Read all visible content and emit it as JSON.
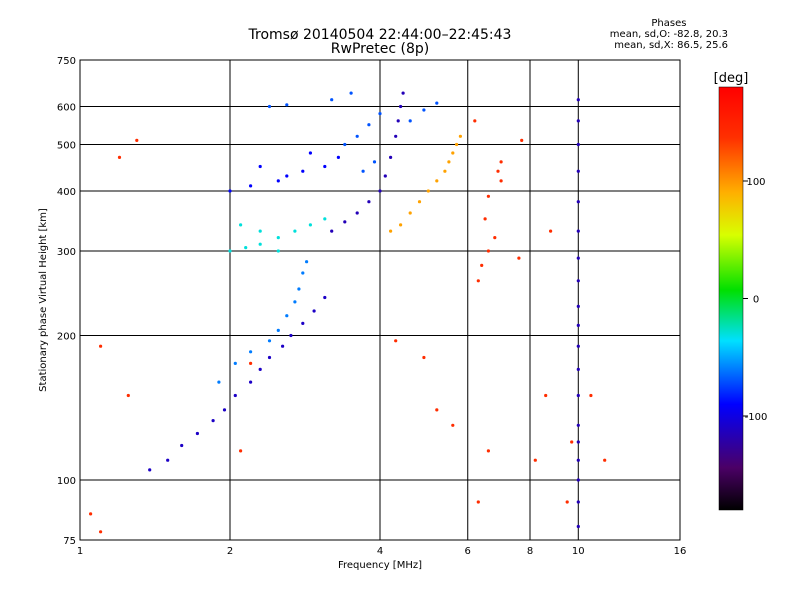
{
  "header": {
    "title": "Tromsø 20140504 22:44:00–22:45:43",
    "subtitle": "RwPretec (8p)"
  },
  "phases": {
    "label": "Phases",
    "o_line": "mean, sd,O: -82.8, 20.3",
    "x_line": "mean, sd,X:  86.5, 25.6"
  },
  "chart_data": {
    "type": "scatter",
    "title": "Tromsø 20140504 22:44:00–22:45:43",
    "subtitle": "RwPretec (8p)",
    "xlabel": "Frequency [MHz]",
    "ylabel": "Stationary phase Virtual Height [km]",
    "x_scale": "log",
    "y_scale": "log",
    "xlim": [
      1,
      16
    ],
    "ylim": [
      75,
      750
    ],
    "x_ticks": [
      1,
      2,
      4,
      6,
      8,
      10,
      16
    ],
    "y_ticks": [
      75,
      100,
      200,
      300,
      400,
      500,
      600,
      750
    ],
    "grid": true,
    "colorbar": {
      "label": "[deg]",
      "range": [
        -180,
        180
      ],
      "ticks": [
        -100,
        0,
        100
      ]
    },
    "series": [
      {
        "trace": "o_mode_low",
        "phase_deg": -110,
        "points": [
          [
            1.38,
            105
          ],
          [
            1.5,
            110
          ],
          [
            1.6,
            118
          ],
          [
            1.72,
            125
          ],
          [
            1.85,
            133
          ],
          [
            1.95,
            140
          ],
          [
            2.05,
            150
          ],
          [
            2.2,
            160
          ],
          [
            2.3,
            170
          ],
          [
            2.4,
            180
          ],
          [
            2.55,
            190
          ],
          [
            2.65,
            200
          ],
          [
            2.8,
            212
          ],
          [
            2.95,
            225
          ],
          [
            3.1,
            240
          ]
        ]
      },
      {
        "trace": "o_mode_low_spread",
        "phase_deg": -60,
        "points": [
          [
            1.9,
            160
          ],
          [
            2.05,
            175
          ],
          [
            2.2,
            185
          ],
          [
            2.4,
            195
          ],
          [
            2.5,
            205
          ],
          [
            2.6,
            220
          ],
          [
            2.7,
            235
          ],
          [
            2.75,
            250
          ],
          [
            2.8,
            270
          ],
          [
            2.85,
            285
          ]
        ]
      },
      {
        "trace": "o_mode_f_layer",
        "phase_deg": -30,
        "points": [
          [
            2.0,
            300
          ],
          [
            2.15,
            305
          ],
          [
            2.3,
            310
          ],
          [
            2.5,
            320
          ],
          [
            2.7,
            330
          ],
          [
            2.9,
            340
          ],
          [
            3.1,
            350
          ],
          [
            2.3,
            330
          ],
          [
            2.1,
            340
          ],
          [
            2.5,
            300
          ]
        ]
      },
      {
        "trace": "o_mode_f_high",
        "phase_deg": -90,
        "points": [
          [
            2.0,
            400
          ],
          [
            2.2,
            410
          ],
          [
            2.5,
            420
          ],
          [
            2.8,
            440
          ],
          [
            3.1,
            450
          ],
          [
            3.3,
            470
          ],
          [
            2.3,
            450
          ],
          [
            2.6,
            430
          ],
          [
            2.9,
            480
          ]
        ]
      },
      {
        "trace": "o_mode_cusp",
        "phase_deg": -115,
        "points": [
          [
            3.2,
            330
          ],
          [
            3.4,
            345
          ],
          [
            3.6,
            360
          ],
          [
            3.8,
            380
          ],
          [
            4.0,
            400
          ],
          [
            4.1,
            430
          ],
          [
            4.2,
            470
          ],
          [
            4.3,
            520
          ],
          [
            4.35,
            560
          ],
          [
            4.4,
            600
          ],
          [
            4.45,
            640
          ]
        ]
      },
      {
        "trace": "x_mode",
        "phase_deg": 95,
        "points": [
          [
            4.2,
            330
          ],
          [
            4.4,
            340
          ],
          [
            4.6,
            360
          ],
          [
            4.8,
            380
          ],
          [
            5.0,
            400
          ],
          [
            5.2,
            420
          ],
          [
            5.4,
            440
          ],
          [
            5.5,
            460
          ],
          [
            5.6,
            480
          ],
          [
            5.7,
            500
          ],
          [
            5.8,
            520
          ]
        ]
      },
      {
        "trace": "upper_spread",
        "phase_deg": -70,
        "points": [
          [
            3.4,
            500
          ],
          [
            3.6,
            520
          ],
          [
            3.8,
            550
          ],
          [
            4.0,
            580
          ],
          [
            3.9,
            460
          ],
          [
            3.7,
            440
          ],
          [
            4.6,
            560
          ],
          [
            4.9,
            590
          ],
          [
            5.2,
            610
          ],
          [
            3.2,
            620
          ],
          [
            3.5,
            640
          ],
          [
            2.4,
            600
          ],
          [
            2.6,
            605
          ]
        ]
      },
      {
        "trace": "column_10mhz",
        "phase_deg": -115,
        "points": [
          [
            10,
            80
          ],
          [
            10,
            90
          ],
          [
            10,
            100
          ],
          [
            10,
            110
          ],
          [
            10,
            120
          ],
          [
            10,
            130
          ],
          [
            10,
            150
          ],
          [
            10,
            170
          ],
          [
            10,
            190
          ],
          [
            10,
            210
          ],
          [
            10,
            230
          ],
          [
            10,
            260
          ],
          [
            10,
            290
          ],
          [
            10,
            330
          ],
          [
            10,
            380
          ],
          [
            10,
            440
          ],
          [
            10,
            500
          ],
          [
            10,
            560
          ],
          [
            10,
            620
          ]
        ]
      },
      {
        "trace": "column_6mhz",
        "phase_deg": 140,
        "points": [
          [
            6.3,
            260
          ],
          [
            6.4,
            280
          ],
          [
            6.6,
            300
          ],
          [
            6.8,
            320
          ],
          [
            6.5,
            350
          ],
          [
            6.6,
            390
          ],
          [
            7.0,
            420
          ],
          [
            6.9,
            440
          ]
        ]
      },
      {
        "trace": "scatter_noise",
        "phase_deg": 140,
        "points": [
          [
            1.05,
            85
          ],
          [
            1.1,
            78
          ],
          [
            1.1,
            190
          ],
          [
            1.2,
            470
          ],
          [
            1.3,
            510
          ],
          [
            1.25,
            150
          ],
          [
            2.1,
            115
          ],
          [
            2.2,
            175
          ],
          [
            4.3,
            195
          ],
          [
            4.9,
            180
          ],
          [
            5.2,
            140
          ],
          [
            5.6,
            130
          ],
          [
            6.3,
            90
          ],
          [
            6.6,
            115
          ],
          [
            7.6,
            290
          ],
          [
            8.2,
            110
          ],
          [
            8.6,
            150
          ],
          [
            9.5,
            90
          ],
          [
            9.7,
            120
          ],
          [
            10.6,
            150
          ],
          [
            11.3,
            110
          ],
          [
            7.0,
            460
          ],
          [
            6.2,
            560
          ],
          [
            7.7,
            510
          ],
          [
            8.8,
            330
          ]
        ]
      }
    ]
  }
}
